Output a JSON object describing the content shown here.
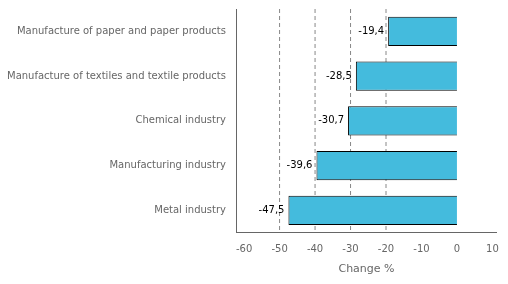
{
  "chart_data": {
    "type": "bar",
    "orientation": "horizontal",
    "categories": [
      "Metal industry",
      "Manufacturing industry",
      "Chemical industry",
      "Manufacture of textiles and textile products",
      "Manufacture of paper and paper products"
    ],
    "values": [
      -47.5,
      -39.6,
      -30.7,
      -28.5,
      -19.4
    ],
    "value_labels": [
      "-47,5",
      "-39,6",
      "-30,7",
      "-28,5",
      "-19,4"
    ],
    "color": "#44bbdd",
    "xlim": [
      -62,
      11
    ],
    "xticks": [
      -60,
      -50,
      -40,
      -30,
      -20,
      -10,
      0,
      10
    ],
    "xlabel": "Change %",
    "vlines": [
      -50,
      -40,
      -30,
      -20
    ],
    "grid": false
  }
}
